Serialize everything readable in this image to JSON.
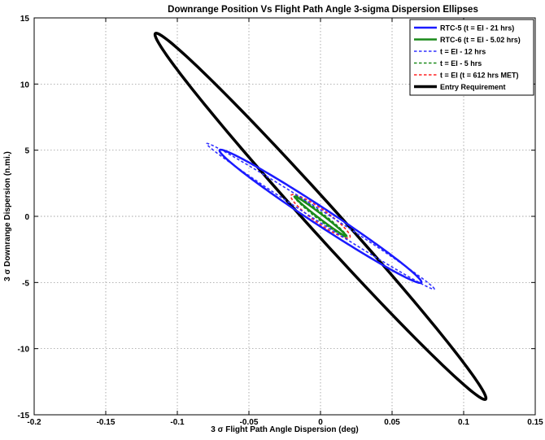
{
  "chart_data": {
    "type": "line",
    "title": "Downrange Position Vs Flight Path Angle 3-sigma Dispersion Ellipses",
    "xlabel": "3 σ Flight Path Angle Dispersion (deg)",
    "ylabel": "3 σ Downrange Dispersion (n.mi.)",
    "xlim": [
      -0.2,
      0.15
    ],
    "ylim": [
      -15,
      15
    ],
    "xticks": [
      "-0.2",
      "-0.15",
      "-0.1",
      "-0.05",
      "0",
      "0.05",
      "0.1",
      "0.15"
    ],
    "yticks": [
      "-15",
      "-10",
      "-5",
      "0",
      "5",
      "10",
      "15"
    ],
    "grid": true,
    "legend_position": "top-right",
    "series": [
      {
        "name": "RTC-5 (t = EI - 21 hrs)",
        "color": "#1a1aff",
        "style": "solid",
        "width": 2.5,
        "ellipse": {
          "center": [
            0,
            0
          ],
          "u": [
            0.0705,
            -5.0
          ],
          "v": [
            0.0025,
            0.6
          ]
        }
      },
      {
        "name": "RTC-6 (t = EI - 5.02 hrs)",
        "color": "#1a8a1a",
        "style": "solid",
        "width": 2.5,
        "ellipse": {
          "center": [
            0,
            0
          ],
          "u": [
            0.018,
            -1.5
          ],
          "v": [
            0.0009,
            0.14
          ]
        }
      },
      {
        "name": "t = EI - 12 hrs",
        "color": "#3030ff",
        "style": "dashed",
        "width": 1.6,
        "ellipse": {
          "center": [
            0,
            0
          ],
          "u": [
            0.0795,
            -5.5
          ],
          "v": [
            0.002,
            0.35
          ]
        }
      },
      {
        "name": "t = EI - 5 hrs",
        "color": "#1a8a1a",
        "style": "dashed",
        "width": 1.6,
        "ellipse": {
          "center": [
            0,
            0
          ],
          "u": [
            0.0185,
            -1.55
          ],
          "v": [
            0.0014,
            0.22
          ]
        }
      },
      {
        "name": "t = EI (t = 612 hrs MET)",
        "color": "#ff2020",
        "style": "dashed",
        "width": 1.6,
        "ellipse": {
          "center": [
            0,
            0
          ],
          "u": [
            0.0205,
            -1.6
          ],
          "v": [
            0.003,
            0.4
          ]
        }
      },
      {
        "name": "Entry Requirement",
        "color": "#000000",
        "style": "solid",
        "width": 3.5,
        "ellipse": {
          "center": [
            0,
            0
          ],
          "u": [
            0.1155,
            -13.8
          ],
          "v": [
            0.0045,
            1.1
          ]
        }
      }
    ]
  }
}
